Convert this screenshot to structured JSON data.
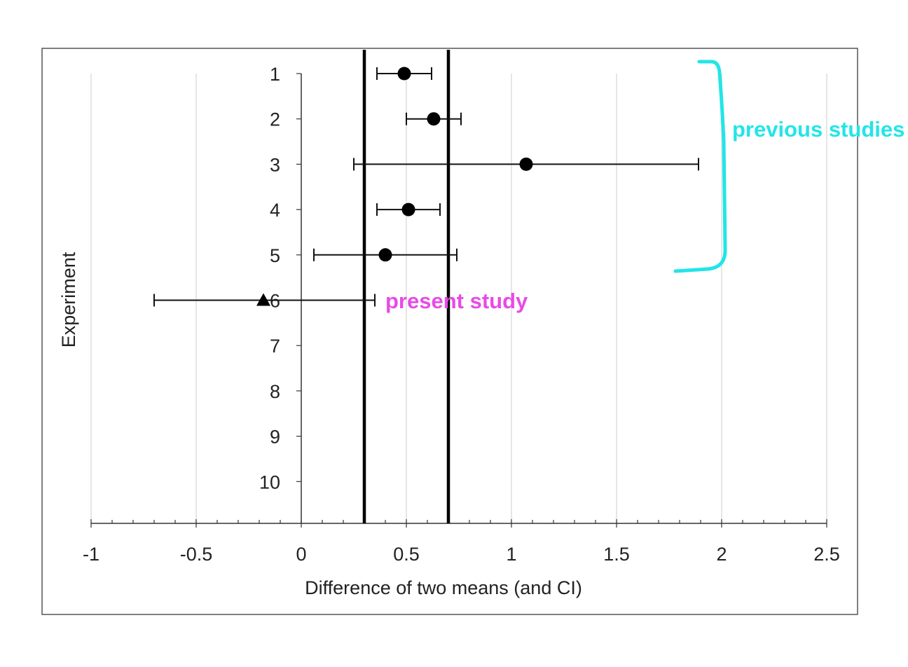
{
  "chart_data": {
    "type": "scatter",
    "title": "",
    "xlabel": "Difference of two means (and CI)",
    "ylabel": "Experiment",
    "xlim": [
      -1,
      2.5
    ],
    "x_ticks": [
      "-1",
      "-0.5",
      "0",
      "0.5",
      "1",
      "1.5",
      "2",
      "2.5"
    ],
    "y_ticks": [
      "1",
      "2",
      "3",
      "4",
      "5",
      "6",
      "7",
      "8",
      "9",
      "10"
    ],
    "grid": true,
    "reference_lines_x": [
      0.3,
      0.7
    ],
    "series": [
      {
        "marker": "circle",
        "points": [
          {
            "experiment": 1,
            "mean": 0.49,
            "ci_low": 0.36,
            "ci_high": 0.62
          },
          {
            "experiment": 2,
            "mean": 0.63,
            "ci_low": 0.5,
            "ci_high": 0.76
          },
          {
            "experiment": 3,
            "mean": 1.07,
            "ci_low": 0.25,
            "ci_high": 1.89
          },
          {
            "experiment": 4,
            "mean": 0.51,
            "ci_low": 0.36,
            "ci_high": 0.66
          },
          {
            "experiment": 5,
            "mean": 0.4,
            "ci_low": 0.06,
            "ci_high": 0.74
          }
        ]
      },
      {
        "marker": "triangle",
        "points": [
          {
            "experiment": 6,
            "mean": -0.18,
            "ci_low": -0.7,
            "ci_high": 0.35
          }
        ]
      }
    ],
    "annotations": [
      {
        "text": "previous studies",
        "color": "#22e5e8"
      },
      {
        "text": "present study",
        "color": "#e84ae8"
      }
    ]
  }
}
